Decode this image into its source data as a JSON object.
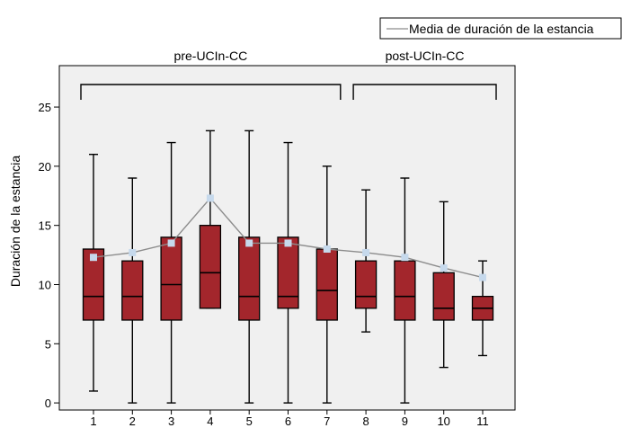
{
  "chart_data": {
    "type": "box",
    "ylabel": "Duración de la estancia",
    "yticks": [
      0,
      5,
      10,
      15,
      20,
      25
    ],
    "ylim": [
      -0.6,
      28.5
    ],
    "categories": [
      "1",
      "2",
      "3",
      "4",
      "5",
      "6",
      "7",
      "8",
      "9",
      "10",
      "11"
    ],
    "boxes": [
      {
        "min": 1,
        "q1": 7,
        "median": 9,
        "q3": 13,
        "max": 21
      },
      {
        "min": 0,
        "q1": 7,
        "median": 9,
        "q3": 12,
        "max": 19
      },
      {
        "min": 0,
        "q1": 7,
        "median": 10,
        "q3": 14,
        "max": 22
      },
      {
        "min": 8,
        "q1": 8,
        "median": 11,
        "q3": 15,
        "max": 23
      },
      {
        "min": 0,
        "q1": 7,
        "median": 9,
        "q3": 14,
        "max": 23
      },
      {
        "min": 0,
        "q1": 8,
        "median": 9,
        "q3": 14,
        "max": 22
      },
      {
        "min": 0,
        "q1": 7,
        "median": 9.5,
        "q3": 13,
        "max": 20
      },
      {
        "min": 6,
        "q1": 8,
        "median": 9,
        "q3": 12,
        "max": 18
      },
      {
        "min": 0,
        "q1": 7,
        "median": 9,
        "q3": 12,
        "max": 19
      },
      {
        "min": 3,
        "q1": 7,
        "median": 8,
        "q3": 11,
        "max": 17
      },
      {
        "min": 4,
        "q1": 7,
        "median": 8,
        "q3": 9,
        "max": 12
      }
    ],
    "mean_series": {
      "name": "Media de duración de la estancia",
      "values": [
        12.3,
        12.7,
        13.5,
        17.3,
        13.5,
        13.5,
        13.0,
        12.7,
        12.3,
        11.4,
        10.6
      ]
    },
    "groups": [
      {
        "label": "pre-UCIn-CC",
        "from": 1,
        "to": 7
      },
      {
        "label": "post-UCIn-CC",
        "from": 8,
        "to": 11
      }
    ],
    "legend_position": "top-right",
    "colors": {
      "box_fill": "#a3262c",
      "plot_background": "#f0f0f0",
      "mean_line": "#8c8c8c",
      "mean_marker": "#c6d9ec"
    }
  }
}
